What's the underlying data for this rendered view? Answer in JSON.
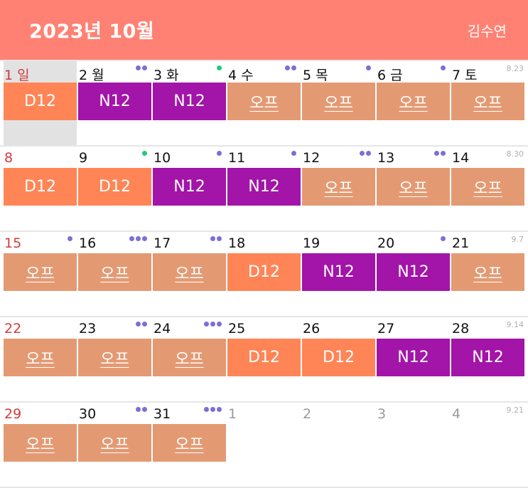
{
  "header": {
    "title": "2023년 10월",
    "user": "김수연"
  },
  "colors": {
    "header": "#FF8173",
    "D12": "#FF8556",
    "N12": "#A314A8",
    "off": "#E39A73",
    "dot_purple": "#7b6fd6",
    "dot_green": "#1fcc7a"
  },
  "weeks": [
    {
      "label": "8.23",
      "days": [
        {
          "num": "1 일",
          "sun": true,
          "today": true,
          "shift": "D12",
          "dots": []
        },
        {
          "num": "2 월",
          "shift": "N12",
          "dots": [
            "purple",
            "purple"
          ]
        },
        {
          "num": "3 화",
          "shift": "N12",
          "dots": [
            "green"
          ]
        },
        {
          "num": "4 수",
          "shift": "오프",
          "dots": [
            "purple",
            "purple"
          ]
        },
        {
          "num": "5 목",
          "shift": "오프",
          "dots": [
            "purple"
          ]
        },
        {
          "num": "6 금",
          "shift": "오프",
          "dots": [
            "purple"
          ]
        },
        {
          "num": "7 토",
          "shift": "오프",
          "dots": []
        }
      ]
    },
    {
      "label": "8.30",
      "days": [
        {
          "num": "8",
          "sun": true,
          "shift": "D12",
          "dots": []
        },
        {
          "num": "9",
          "shift": "D12",
          "dots": [
            "green"
          ]
        },
        {
          "num": "10",
          "shift": "N12",
          "dots": [
            "purple"
          ]
        },
        {
          "num": "11",
          "shift": "N12",
          "dots": [
            "purple"
          ]
        },
        {
          "num": "12",
          "shift": "오프",
          "dots": [
            "purple",
            "purple"
          ]
        },
        {
          "num": "13",
          "shift": "오프",
          "dots": [
            "purple",
            "purple"
          ]
        },
        {
          "num": "14",
          "shift": "오프",
          "dots": []
        }
      ]
    },
    {
      "label": "9.7",
      "days": [
        {
          "num": "15",
          "sun": true,
          "shift": "오프",
          "dots": [
            "purple"
          ]
        },
        {
          "num": "16",
          "shift": "오프",
          "dots": [
            "purple",
            "purple",
            "purple"
          ]
        },
        {
          "num": "17",
          "shift": "오프",
          "dots": [
            "purple",
            "purple"
          ]
        },
        {
          "num": "18",
          "shift": "D12",
          "dots": []
        },
        {
          "num": "19",
          "shift": "N12",
          "dots": []
        },
        {
          "num": "20",
          "shift": "N12",
          "dots": [
            "purple"
          ]
        },
        {
          "num": "21",
          "shift": "오프",
          "dots": []
        }
      ]
    },
    {
      "label": "9.14",
      "days": [
        {
          "num": "22",
          "sun": true,
          "shift": "오프",
          "dots": []
        },
        {
          "num": "23",
          "shift": "오프",
          "dots": [
            "purple",
            "purple"
          ]
        },
        {
          "num": "24",
          "shift": "오프",
          "dots": [
            "purple",
            "purple",
            "purple"
          ]
        },
        {
          "num": "25",
          "shift": "D12",
          "dots": []
        },
        {
          "num": "26",
          "shift": "D12",
          "dots": []
        },
        {
          "num": "27",
          "shift": "N12",
          "dots": []
        },
        {
          "num": "28",
          "shift": "N12",
          "dots": []
        }
      ]
    },
    {
      "label": "9.21",
      "days": [
        {
          "num": "29",
          "sun": true,
          "shift": "오프",
          "dots": []
        },
        {
          "num": "30",
          "shift": "오프",
          "dots": [
            "purple",
            "purple"
          ]
        },
        {
          "num": "31",
          "shift": "오프",
          "dots": [
            "purple",
            "purple",
            "purple"
          ]
        },
        {
          "num": "1",
          "other": true,
          "shift": "",
          "dots": []
        },
        {
          "num": "2",
          "other": true,
          "shift": "",
          "dots": []
        },
        {
          "num": "3",
          "other": true,
          "shift": "",
          "dots": []
        },
        {
          "num": "4",
          "other": true,
          "shift": "",
          "dots": []
        }
      ]
    }
  ]
}
